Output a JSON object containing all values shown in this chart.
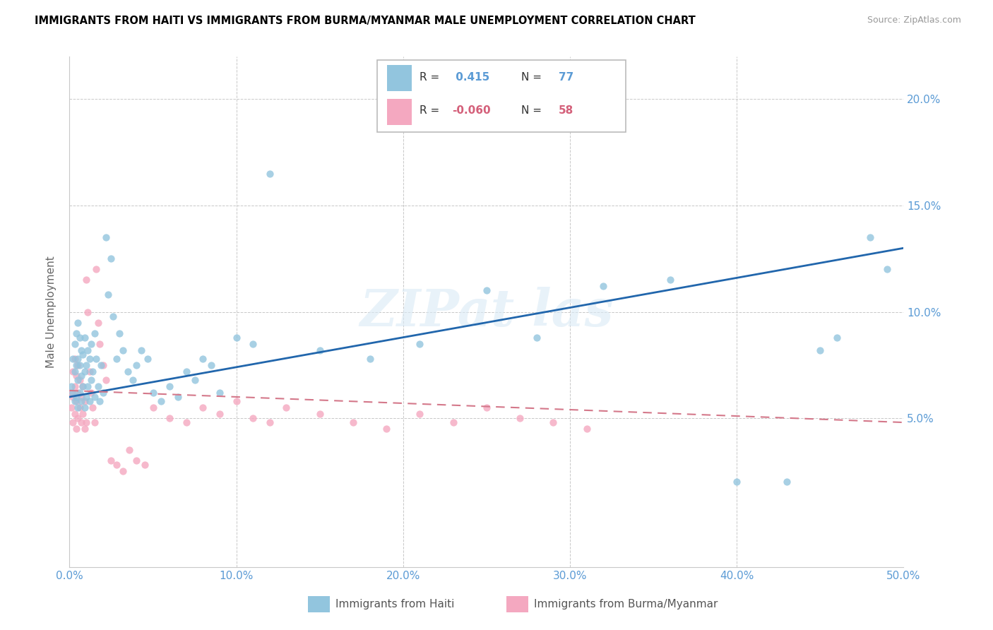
{
  "title": "IMMIGRANTS FROM HAITI VS IMMIGRANTS FROM BURMA/MYANMAR MALE UNEMPLOYMENT CORRELATION CHART",
  "source": "Source: ZipAtlas.com",
  "ylabel": "Male Unemployment",
  "haiti_R": "0.415",
  "haiti_N": "77",
  "burma_R": "-0.060",
  "burma_N": "58",
  "haiti_color": "#92c5de",
  "burma_color": "#f4a8c0",
  "haiti_line_color": "#2166ac",
  "burma_line_color": "#d4788a",
  "legend_label_haiti": "Immigrants from Haiti",
  "legend_label_burma": "Immigrants from Burma/Myanmar",
  "haiti_scatter_x": [
    0.001,
    0.002,
    0.002,
    0.003,
    0.003,
    0.003,
    0.004,
    0.004,
    0.004,
    0.005,
    0.005,
    0.005,
    0.005,
    0.006,
    0.006,
    0.006,
    0.007,
    0.007,
    0.007,
    0.008,
    0.008,
    0.009,
    0.009,
    0.009,
    0.01,
    0.01,
    0.011,
    0.011,
    0.012,
    0.012,
    0.013,
    0.013,
    0.014,
    0.015,
    0.015,
    0.016,
    0.017,
    0.018,
    0.019,
    0.02,
    0.022,
    0.023,
    0.025,
    0.026,
    0.028,
    0.03,
    0.032,
    0.035,
    0.038,
    0.04,
    0.043,
    0.047,
    0.05,
    0.055,
    0.06,
    0.065,
    0.07,
    0.075,
    0.08,
    0.085,
    0.09,
    0.1,
    0.11,
    0.12,
    0.15,
    0.18,
    0.21,
    0.25,
    0.28,
    0.32,
    0.36,
    0.4,
    0.43,
    0.45,
    0.46,
    0.48,
    0.49
  ],
  "haiti_scatter_y": [
    0.065,
    0.062,
    0.078,
    0.058,
    0.072,
    0.085,
    0.06,
    0.075,
    0.09,
    0.055,
    0.068,
    0.078,
    0.095,
    0.062,
    0.075,
    0.088,
    0.058,
    0.07,
    0.082,
    0.065,
    0.08,
    0.055,
    0.072,
    0.088,
    0.06,
    0.075,
    0.065,
    0.082,
    0.058,
    0.078,
    0.068,
    0.085,
    0.072,
    0.06,
    0.09,
    0.078,
    0.065,
    0.058,
    0.075,
    0.062,
    0.135,
    0.108,
    0.125,
    0.098,
    0.078,
    0.09,
    0.082,
    0.072,
    0.068,
    0.075,
    0.082,
    0.078,
    0.062,
    0.058,
    0.065,
    0.06,
    0.072,
    0.068,
    0.078,
    0.075,
    0.062,
    0.088,
    0.085,
    0.165,
    0.082,
    0.078,
    0.085,
    0.11,
    0.088,
    0.112,
    0.115,
    0.02,
    0.02,
    0.082,
    0.088,
    0.135,
    0.12
  ],
  "burma_scatter_x": [
    0.001,
    0.001,
    0.002,
    0.002,
    0.002,
    0.003,
    0.003,
    0.003,
    0.004,
    0.004,
    0.004,
    0.005,
    0.005,
    0.005,
    0.006,
    0.006,
    0.007,
    0.007,
    0.008,
    0.008,
    0.009,
    0.009,
    0.01,
    0.01,
    0.011,
    0.012,
    0.013,
    0.014,
    0.015,
    0.016,
    0.017,
    0.018,
    0.02,
    0.022,
    0.025,
    0.028,
    0.032,
    0.036,
    0.04,
    0.045,
    0.05,
    0.06,
    0.07,
    0.08,
    0.09,
    0.1,
    0.11,
    0.12,
    0.13,
    0.15,
    0.17,
    0.19,
    0.21,
    0.23,
    0.25,
    0.27,
    0.29,
    0.31
  ],
  "burma_scatter_y": [
    0.055,
    0.062,
    0.048,
    0.06,
    0.072,
    0.052,
    0.065,
    0.078,
    0.045,
    0.058,
    0.07,
    0.05,
    0.062,
    0.075,
    0.055,
    0.068,
    0.048,
    0.06,
    0.052,
    0.065,
    0.045,
    0.058,
    0.115,
    0.048,
    0.1,
    0.072,
    0.062,
    0.055,
    0.048,
    0.12,
    0.095,
    0.085,
    0.075,
    0.068,
    0.03,
    0.028,
    0.025,
    0.035,
    0.03,
    0.028,
    0.055,
    0.05,
    0.048,
    0.055,
    0.052,
    0.058,
    0.05,
    0.048,
    0.055,
    0.052,
    0.048,
    0.045,
    0.052,
    0.048,
    0.055,
    0.05,
    0.048,
    0.045
  ],
  "xlim": [
    0.0,
    0.5
  ],
  "ylim": [
    -0.02,
    0.22
  ],
  "ytick_vals": [
    0.05,
    0.1,
    0.15,
    0.2
  ],
  "ytick_labels": [
    "5.0%",
    "10.0%",
    "15.0%",
    "20.0%"
  ],
  "xtick_vals": [
    0.0,
    0.1,
    0.2,
    0.3,
    0.4,
    0.5
  ],
  "xtick_labels": [
    "0.0%",
    "10.0%",
    "20.0%",
    "30.0%",
    "40.0%",
    "50.0%"
  ],
  "haiti_trend": [
    0.0,
    0.5,
    0.06,
    0.13
  ],
  "burma_trend": [
    0.0,
    0.5,
    0.063,
    0.048
  ]
}
